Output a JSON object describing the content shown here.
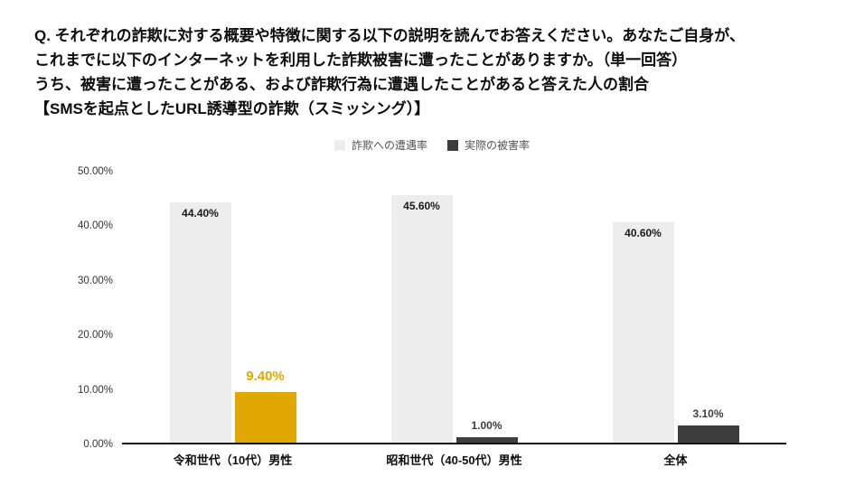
{
  "title": {
    "lines": [
      "Q. それぞれの詐欺に対する概要や特徴に関する以下の説明を読んでお答えください。あなたご自身が、",
      "これまでに以下のインターネットを利用した詐欺被害に遭ったことがありますか。（単一回答）",
      "うち、被害に遭ったことがある、および詐欺行為に遭遇したことがあると答えた人の割合",
      "【SMSを起点としたURL誘導型の詐欺（スミッシング）】"
    ]
  },
  "chart_data": {
    "type": "bar",
    "categories": [
      "令和世代（10代）男性",
      "昭和世代（40-50代）男性",
      "全体"
    ],
    "series": [
      {
        "name": "詐欺への遭遇率",
        "color": "#ededed",
        "values": [
          44.4,
          45.6,
          40.6
        ],
        "data_labels": [
          "44.40%",
          "45.60%",
          "40.60%"
        ]
      },
      {
        "name": "実際の被害率",
        "color": "#3e3e3e",
        "values": [
          9.4,
          1.0,
          3.1
        ],
        "data_labels": [
          "9.40%",
          "1.00%",
          "3.10%"
        ],
        "highlight_index": 0,
        "highlight_color": "#E0A800"
      }
    ],
    "ylim": [
      0,
      50
    ],
    "yticks": [
      "0.00%",
      "10.00%",
      "20.00%",
      "30.00%",
      "40.00%",
      "50.00%"
    ],
    "grid": false,
    "legend_position": "top",
    "xlabel": "",
    "ylabel": ""
  }
}
